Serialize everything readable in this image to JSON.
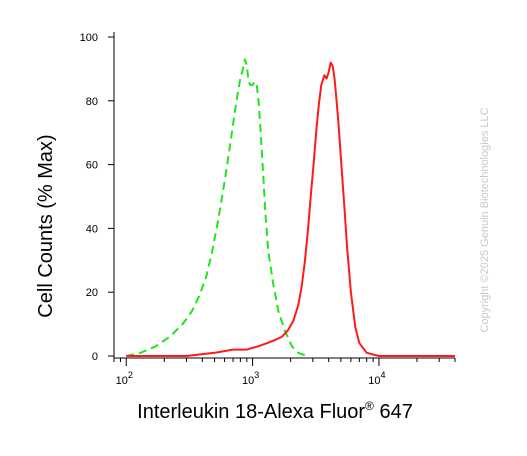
{
  "chart_data": {
    "type": "line",
    "xlabel": "Interleukin 18-Alexa Fluor",
    "xlabel_sup": "®",
    "xlabel_suffix": " 647",
    "ylabel": "Cell Counts (% Max)",
    "x_scale": "log",
    "xlim": [
      80,
      40000
    ],
    "ylim": [
      0,
      100
    ],
    "x_ticks": [
      {
        "base": "10",
        "exp": "2",
        "value": 100
      },
      {
        "base": "10",
        "exp": "3",
        "value": 1000
      },
      {
        "base": "10",
        "exp": "4",
        "value": 10000
      }
    ],
    "y_ticks": [
      "0",
      "20",
      "40",
      "60",
      "80",
      "100"
    ],
    "y_tick_values": [
      0,
      20,
      40,
      60,
      80,
      100
    ],
    "grid": false,
    "series": [
      {
        "style": "dashed",
        "color": "#1ee61e",
        "x": [
          100,
          130,
          170,
          220,
          280,
          330,
          380,
          430,
          480,
          530,
          580,
          630,
          680,
          720,
          760,
          800,
          840,
          870,
          900,
          930,
          960,
          1000,
          1040,
          1080,
          1120,
          1160,
          1210,
          1260,
          1330,
          1450,
          1600,
          1800,
          2050,
          2300,
          2700
        ],
        "y": [
          0,
          1,
          3,
          6,
          10,
          14,
          19,
          25,
          33,
          42,
          51,
          60,
          69,
          76,
          82,
          87,
          90,
          93,
          91,
          86,
          85,
          85,
          86,
          85,
          79,
          70,
          58,
          45,
          33,
          23,
          14,
          8,
          3,
          1,
          0
        ]
      },
      {
        "style": "solid",
        "color": "#ff1a1a",
        "x": [
          100,
          300,
          500,
          700,
          900,
          1100,
          1300,
          1500,
          1700,
          1900,
          2100,
          2300,
          2450,
          2600,
          2750,
          2900,
          3050,
          3200,
          3350,
          3500,
          3700,
          3850,
          4000,
          4150,
          4300,
          4450,
          4600,
          4800,
          5000,
          5300,
          5600,
          6000,
          6500,
          7000,
          8000,
          10000,
          15000,
          40000
        ],
        "y": [
          0,
          0,
          1,
          2,
          2,
          3,
          4,
          5,
          6,
          8,
          11,
          16,
          22,
          30,
          40,
          51,
          61,
          71,
          79,
          85,
          88,
          87,
          89,
          92,
          91,
          87,
          81,
          72,
          62,
          48,
          34,
          20,
          9,
          4,
          1,
          0,
          0,
          0
        ]
      }
    ]
  },
  "watermark": "Copyright ©2025 Genuin Biotechnologies LLC"
}
